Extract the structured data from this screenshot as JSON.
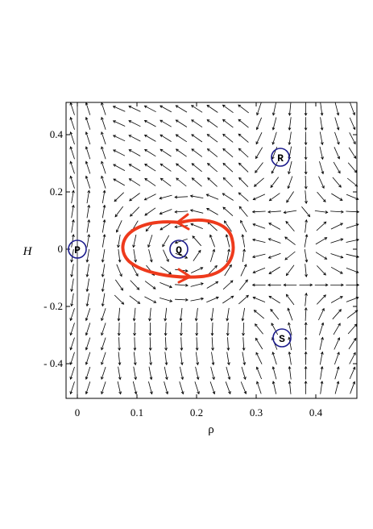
{
  "axes": {
    "xlabel": "ρ",
    "ylabel": "H",
    "xticks": [
      {
        "value": 0,
        "label": "0"
      },
      {
        "value": 0.1,
        "label": "0.1"
      },
      {
        "value": 0.2,
        "label": "0.2"
      },
      {
        "value": 0.3,
        "label": "0.3"
      },
      {
        "value": 0.4,
        "label": "0.4"
      }
    ],
    "yticks": [
      {
        "value": 0.4,
        "label": "0.4"
      },
      {
        "value": 0.2,
        "label": "0.2"
      },
      {
        "value": 0,
        "label": "0"
      },
      {
        "value": -0.2,
        "label": "- 0.2"
      },
      {
        "value": -0.4,
        "label": "- 0.4"
      }
    ],
    "xlim": [
      -0.02,
      0.47
    ],
    "ylim": [
      -0.53,
      0.53
    ]
  },
  "equilibria": [
    {
      "label": "P",
      "rho": 0.0,
      "H": 0.0
    },
    {
      "label": "Q",
      "rho": 0.18,
      "H": 0.0
    },
    {
      "label": "R",
      "rho": 0.35,
      "H": 0.32
    },
    {
      "label": "S",
      "rho": 0.35,
      "H": -0.31
    }
  ],
  "colors": {
    "orbit": "#ee3a1c",
    "marker": "#1a1a8c",
    "arrows": "#000000"
  }
}
